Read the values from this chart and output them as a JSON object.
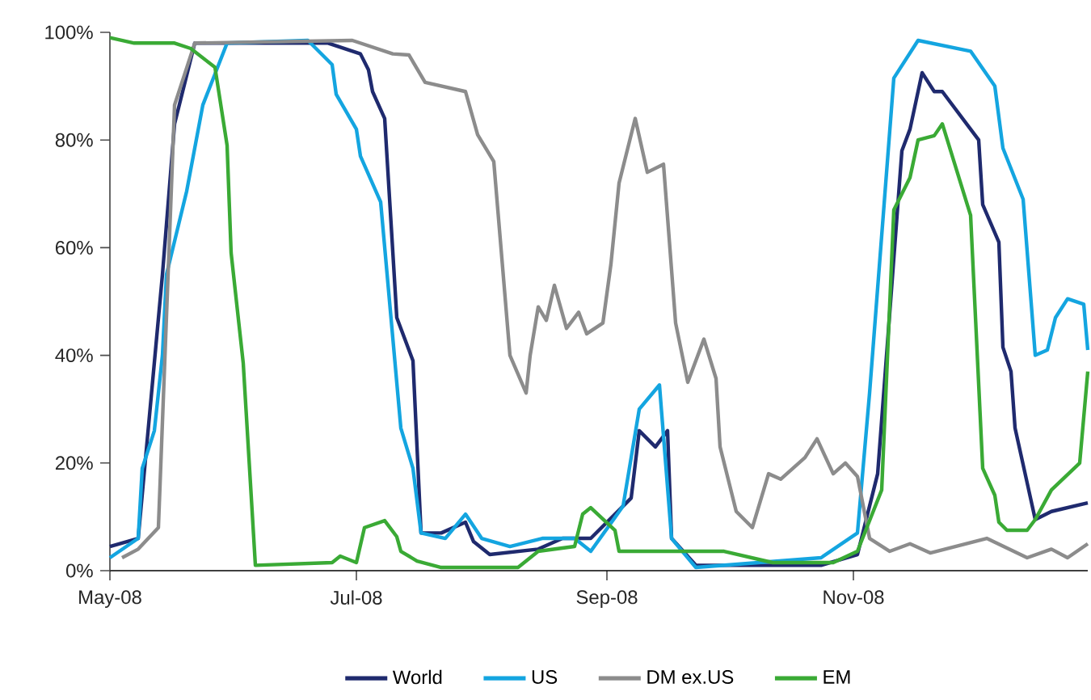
{
  "chart_data": {
    "type": "line",
    "legend": "bottom",
    "marker": "none",
    "line_style": "solid",
    "xlim": [
      "2008-05-01",
      "2008-12-29"
    ],
    "xticks": [
      {
        "value": "2008-05-01",
        "label": "May-08"
      },
      {
        "value": "2008-07-01",
        "label": "Jul-08"
      },
      {
        "value": "2008-09-01",
        "label": "Sep-08"
      },
      {
        "value": "2008-11-01",
        "label": "Nov-08"
      }
    ],
    "ylim": [
      0,
      100
    ],
    "yticks": [
      {
        "value": 0,
        "label": "0%"
      },
      {
        "value": 20,
        "label": "20%"
      },
      {
        "value": 40,
        "label": "40%"
      },
      {
        "value": 60,
        "label": "60%"
      },
      {
        "value": 80,
        "label": "80%"
      },
      {
        "value": 100,
        "label": "100%"
      }
    ],
    "series": [
      {
        "name": "World",
        "color": "#1f2a6e",
        "x": [
          "2008-05-01",
          "2008-05-08",
          "2008-05-14",
          "2008-05-17",
          "2008-05-22",
          "2008-06-24",
          "2008-07-02",
          "2008-07-04",
          "2008-07-05",
          "2008-07-08",
          "2008-07-11",
          "2008-07-15",
          "2008-07-17",
          "2008-07-22",
          "2008-07-28",
          "2008-07-30",
          "2008-08-03",
          "2008-08-15",
          "2008-08-21",
          "2008-08-28",
          "2008-09-05",
          "2008-09-07",
          "2008-09-09",
          "2008-09-13",
          "2008-09-16",
          "2008-09-17",
          "2008-09-23",
          "2008-10-24",
          "2008-11-02",
          "2008-11-07",
          "2008-11-13",
          "2008-11-15",
          "2008-11-18",
          "2008-11-21",
          "2008-11-23",
          "2008-12-02",
          "2008-12-03",
          "2008-12-07",
          "2008-12-08",
          "2008-12-10",
          "2008-12-11",
          "2008-12-16",
          "2008-12-20",
          "2008-12-29"
        ],
        "values": [
          4.5,
          6,
          55,
          83,
          98,
          98,
          96,
          93,
          89,
          84,
          47,
          39,
          7,
          7,
          9,
          5.4,
          3,
          4,
          6,
          6,
          12,
          13.5,
          26,
          23,
          26,
          6,
          1,
          1,
          3,
          18,
          78,
          82,
          92.5,
          89,
          89,
          80,
          68,
          61,
          41.5,
          37,
          26.5,
          9.5,
          11,
          12.6
        ]
      },
      {
        "name": "US",
        "color": "#14a5e0",
        "x": [
          "2008-05-01",
          "2008-05-08",
          "2008-05-09",
          "2008-05-12",
          "2008-05-14",
          "2008-05-15",
          "2008-05-20",
          "2008-05-24",
          "2008-05-30",
          "2008-06-19",
          "2008-06-25",
          "2008-06-26",
          "2008-07-01",
          "2008-07-02",
          "2008-07-07",
          "2008-07-12",
          "2008-07-15",
          "2008-07-17",
          "2008-07-23",
          "2008-07-28",
          "2008-08-01",
          "2008-08-08",
          "2008-08-16",
          "2008-08-24",
          "2008-08-28",
          "2008-09-05",
          "2008-09-09",
          "2008-09-14",
          "2008-09-17",
          "2008-09-23",
          "2008-10-24",
          "2008-11-02",
          "2008-11-05",
          "2008-11-11",
          "2008-11-17",
          "2008-11-30",
          "2008-12-06",
          "2008-12-08",
          "2008-12-13",
          "2008-12-16",
          "2008-12-19",
          "2008-12-21",
          "2008-12-24",
          "2008-12-28",
          "2008-12-29"
        ],
        "values": [
          2.4,
          6,
          19,
          26,
          40,
          55,
          70.5,
          86.5,
          98,
          98.5,
          94,
          88.5,
          82,
          77,
          68.5,
          26.5,
          19,
          7,
          6,
          10.5,
          6,
          4.5,
          6,
          6,
          3.6,
          12,
          30,
          34.5,
          6,
          0.6,
          2.4,
          7,
          33,
          91.5,
          98.5,
          96.5,
          90,
          78.5,
          69,
          40,
          41,
          47,
          50.5,
          49.5,
          41
        ]
      },
      {
        "name": "DM ex.US",
        "color": "#8c8c8c",
        "x": [
          "2008-05-04",
          "2008-05-08",
          "2008-05-13",
          "2008-05-17",
          "2008-05-22",
          "2008-06-30",
          "2008-07-10",
          "2008-07-14",
          "2008-07-18",
          "2008-07-28",
          "2008-07-31",
          "2008-08-04",
          "2008-08-08",
          "2008-08-12",
          "2008-08-13",
          "2008-08-15",
          "2008-08-17",
          "2008-08-19",
          "2008-08-22",
          "2008-08-25",
          "2008-08-27",
          "2008-08-31",
          "2008-09-02",
          "2008-09-04",
          "2008-09-08",
          "2008-09-11",
          "2008-09-15",
          "2008-09-18",
          "2008-09-21",
          "2008-09-25",
          "2008-09-28",
          "2008-09-29",
          "2008-10-03",
          "2008-10-07",
          "2008-10-11",
          "2008-10-14",
          "2008-10-20",
          "2008-10-23",
          "2008-10-27",
          "2008-10-30",
          "2008-11-02",
          "2008-11-05",
          "2008-11-10",
          "2008-11-15",
          "2008-11-20",
          "2008-12-04",
          "2008-12-14",
          "2008-12-20",
          "2008-12-24",
          "2008-12-29"
        ],
        "values": [
          2.4,
          4,
          8,
          86.5,
          98,
          98.5,
          96,
          95.8,
          90.7,
          89,
          81,
          76,
          40,
          33,
          40,
          49,
          46.5,
          53,
          45,
          48,
          44,
          46,
          57,
          72,
          84,
          74,
          75.5,
          46,
          35,
          43,
          35.7,
          23,
          11,
          8,
          18,
          17,
          21,
          24.5,
          18,
          20,
          17.5,
          6,
          3.6,
          5,
          3.3,
          6,
          2.4,
          4,
          2.4,
          5
        ]
      },
      {
        "name": "EM",
        "color": "#3aaa35",
        "x": [
          "2008-05-01",
          "2008-05-07",
          "2008-05-17",
          "2008-05-21",
          "2008-05-27",
          "2008-05-30",
          "2008-05-31",
          "2008-06-03",
          "2008-06-06",
          "2008-06-25",
          "2008-06-27",
          "2008-07-01",
          "2008-07-03",
          "2008-07-08",
          "2008-07-11",
          "2008-07-12",
          "2008-07-16",
          "2008-07-22",
          "2008-08-10",
          "2008-08-15",
          "2008-08-24",
          "2008-08-26",
          "2008-08-28",
          "2008-09-03",
          "2008-09-04",
          "2008-09-30",
          "2008-10-12",
          "2008-10-27",
          "2008-11-02",
          "2008-11-08",
          "2008-11-11",
          "2008-11-15",
          "2008-11-17",
          "2008-11-21",
          "2008-11-23",
          "2008-11-30",
          "2008-12-03",
          "2008-12-06",
          "2008-12-07",
          "2008-12-09",
          "2008-12-14",
          "2008-12-16",
          "2008-12-20",
          "2008-12-27",
          "2008-12-29"
        ],
        "values": [
          99,
          98,
          98,
          97,
          93.5,
          79,
          59,
          38.5,
          1,
          1.5,
          2.7,
          1.5,
          8,
          9.3,
          6.3,
          3.6,
          1.8,
          0.6,
          0.6,
          3.6,
          4.5,
          10.5,
          11.7,
          7.5,
          3.6,
          3.6,
          1.5,
          1.5,
          3.6,
          15,
          67,
          73,
          80,
          80.8,
          83,
          66,
          19,
          14,
          9,
          7.5,
          7.5,
          9.5,
          15,
          20,
          37
        ]
      }
    ]
  }
}
